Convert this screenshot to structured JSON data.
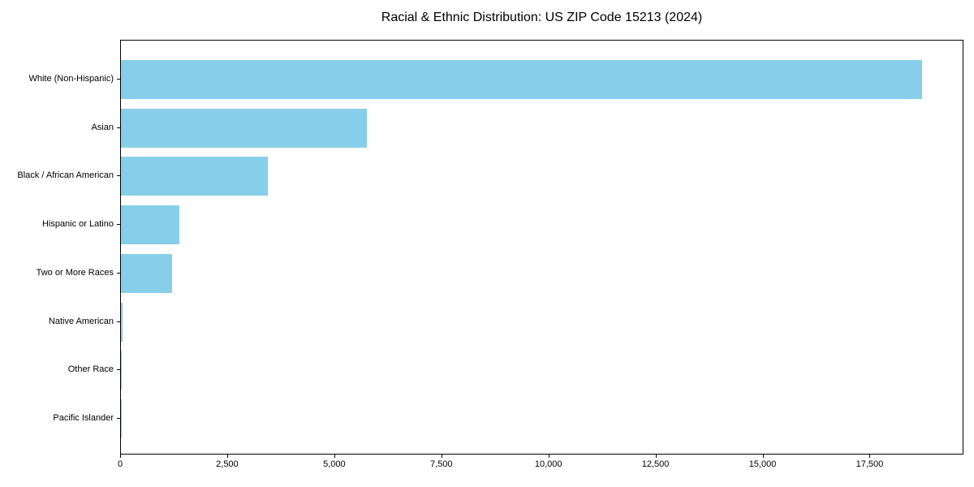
{
  "figure": {
    "background": "#ffffff",
    "bar_color": "#87CEEB",
    "axis_color": "#000000",
    "text_color": "#000000"
  },
  "chart_data": {
    "type": "bar",
    "orientation": "horizontal",
    "title": "Racial & Ethnic Distribution: US ZIP Code 15213 (2024)",
    "categories": [
      "White (Non-Hispanic)",
      "Asian",
      "Black / African American",
      "Hispanic or Latino",
      "Two or More Races",
      "Native American",
      "Other Race",
      "Pacific Islander"
    ],
    "values": [
      18700,
      5750,
      3430,
      1360,
      1200,
      40,
      25,
      10
    ],
    "xlabel": "",
    "ylabel": "",
    "xlim": [
      0,
      19690
    ],
    "xticks": [
      0,
      2500,
      5000,
      7500,
      10000,
      12500,
      15000,
      17500
    ],
    "xtick_labels": [
      "0",
      "2,500",
      "5,000",
      "7,500",
      "10,000",
      "12,500",
      "15,000",
      "17,500"
    ],
    "grid": false,
    "legend": null
  }
}
